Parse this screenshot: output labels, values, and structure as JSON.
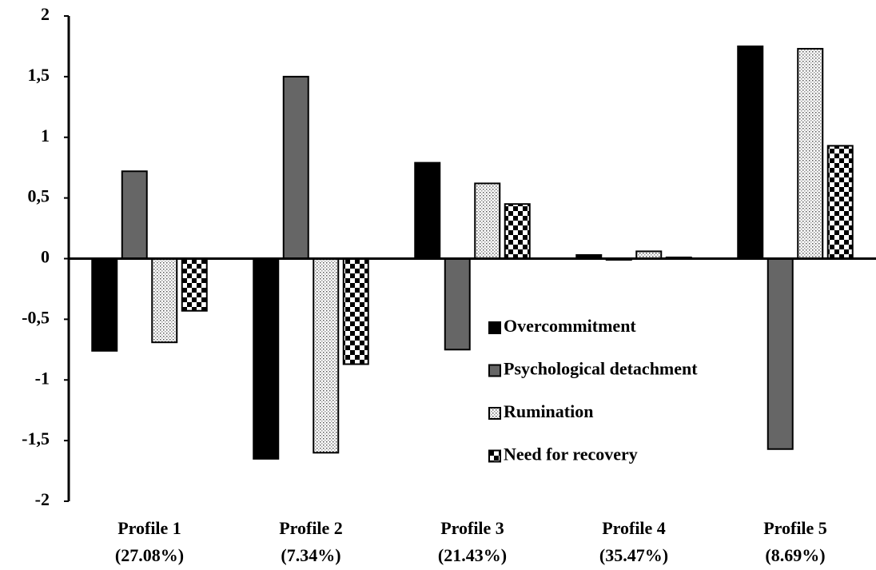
{
  "chart_data": {
    "type": "bar",
    "categories": [
      [
        "Profile 1",
        "(27.08%)"
      ],
      [
        "Profile 2",
        "(7.34%)"
      ],
      [
        "Profile 3",
        "(21.43%)"
      ],
      [
        "Profile 4",
        "(35.47%)"
      ],
      [
        "Profile 5",
        "(8.69%)"
      ]
    ],
    "series": [
      {
        "name": "Overcommitment",
        "color": "#000000",
        "pattern": "solid",
        "values": [
          -0.76,
          -1.65,
          0.79,
          0.03,
          1.75
        ]
      },
      {
        "name": "Psychological detachment",
        "color": "#666666",
        "pattern": "solid",
        "values": [
          0.72,
          1.5,
          -0.75,
          -0.01,
          -1.57
        ]
      },
      {
        "name": "Rumination",
        "color": "#555555",
        "pattern": "dots",
        "values": [
          -0.69,
          -1.6,
          0.62,
          0.06,
          1.73
        ]
      },
      {
        "name": "Need for recovery",
        "color": "#000000",
        "pattern": "checker",
        "values": [
          -0.43,
          -0.87,
          0.45,
          0.01,
          0.93
        ]
      }
    ],
    "ylim": [
      -2,
      2
    ],
    "yticks": [
      {
        "value": -2,
        "label": "-2"
      },
      {
        "value": -1.5,
        "label": "-1,5"
      },
      -1,
      {
        "value": -0.5,
        "label": "-0,5"
      },
      0,
      {
        "value": 0.5,
        "label": "0,5"
      },
      1,
      {
        "value": 1.5,
        "label": "1,5"
      },
      2
    ],
    "grid": false,
    "legend": "lower-right"
  }
}
